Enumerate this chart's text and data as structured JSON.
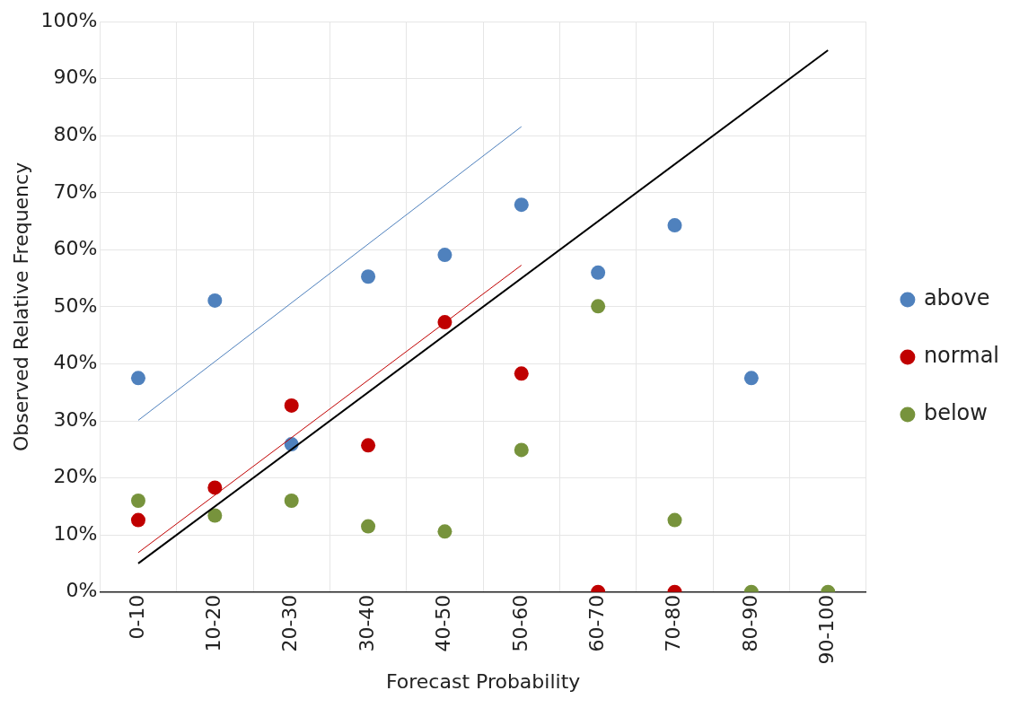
{
  "chart_data": {
    "type": "scatter",
    "xlabel": "Forecast Probability",
    "ylabel": "Observed Relative Frequency",
    "categories": [
      "0-10",
      "10-20",
      "20-30",
      "30-40",
      "40-50",
      "50-60",
      "60-70",
      "70-80",
      "80-90",
      "90-100"
    ],
    "ylim": [
      0,
      100
    ],
    "yticks": [
      {
        "value": 0,
        "label": "0%"
      },
      {
        "value": 10,
        "label": "10%"
      },
      {
        "value": 20,
        "label": "20%"
      },
      {
        "value": 30,
        "label": "30%"
      },
      {
        "value": 40,
        "label": "40%"
      },
      {
        "value": 50,
        "label": "50%"
      },
      {
        "value": 60,
        "label": "60%"
      },
      {
        "value": 70,
        "label": "70%"
      },
      {
        "value": 80,
        "label": "80%"
      },
      {
        "value": 90,
        "label": "90%"
      },
      {
        "value": 100,
        "label": "100%"
      }
    ],
    "grid": true,
    "legend": "right",
    "marker": "circle",
    "series": [
      {
        "type": "line",
        "color": "#000000",
        "x": [
          "0-10",
          "90-100"
        ],
        "values": [
          5,
          95
        ],
        "marker": "none"
      },
      {
        "type": "line",
        "color": "#4f81bd",
        "x": [
          "0-10",
          "50-60"
        ],
        "values": [
          30.1,
          81.6
        ],
        "marker": "none"
      },
      {
        "type": "line",
        "color": "#c00000",
        "x": [
          "0-10",
          "50-60"
        ],
        "values": [
          6.9,
          57.3
        ],
        "marker": "none"
      },
      {
        "name": "above",
        "color": "#4f81bd",
        "x": [
          "0-10",
          "10-20",
          "20-30",
          "30-40",
          "40-50",
          "50-60",
          "60-70",
          "70-80",
          "80-90"
        ],
        "values": [
          37.5,
          51.1,
          25.9,
          55.3,
          59.1,
          67.9,
          56.0,
          64.3,
          37.5
        ]
      },
      {
        "name": "normal",
        "color": "#c00000",
        "x": [
          "0-10",
          "10-20",
          "20-30",
          "30-40",
          "40-50",
          "50-60",
          "60-70",
          "70-80"
        ],
        "values": [
          12.6,
          18.3,
          32.7,
          25.7,
          47.3,
          38.3,
          0,
          0
        ]
      },
      {
        "name": "below",
        "color": "#77933c",
        "values": [
          16.0,
          13.4,
          16.0,
          11.5,
          10.6,
          24.9,
          50.1,
          12.6,
          0,
          0
        ]
      }
    ]
  }
}
